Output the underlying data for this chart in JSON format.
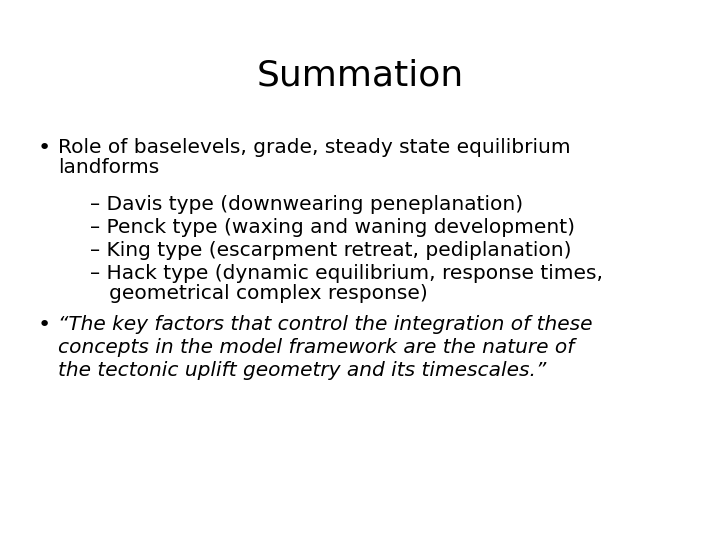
{
  "title": "Summation",
  "title_fontsize": 26,
  "background_color": "#ffffff",
  "text_color": "#000000",
  "bullet1_line1": "Role of baselevels, grade, steady state equilibrium",
  "bullet1_line2": "landforms",
  "sub_bullets": [
    "– Davis type (downwearing peneplanation)",
    "– Penck type (waxing and waning development)",
    "– King type (escarpment retreat, pediplanation)",
    "– Hack type (dynamic equilibrium, response times,",
    "   geometrical complex response)"
  ],
  "bullet2_line1": "“The key factors that control the integration of these",
  "bullet2_line2": "concepts in the model framework are the nature of",
  "bullet2_line3": "the tectonic uplift geometry and its timescales.”",
  "body_fontsize": 14.5,
  "sub_fontsize": 14.5,
  "quote_fontsize": 14.5,
  "bullet_fontsize": 16,
  "figwidth": 7.2,
  "figheight": 5.4,
  "dpi": 100
}
